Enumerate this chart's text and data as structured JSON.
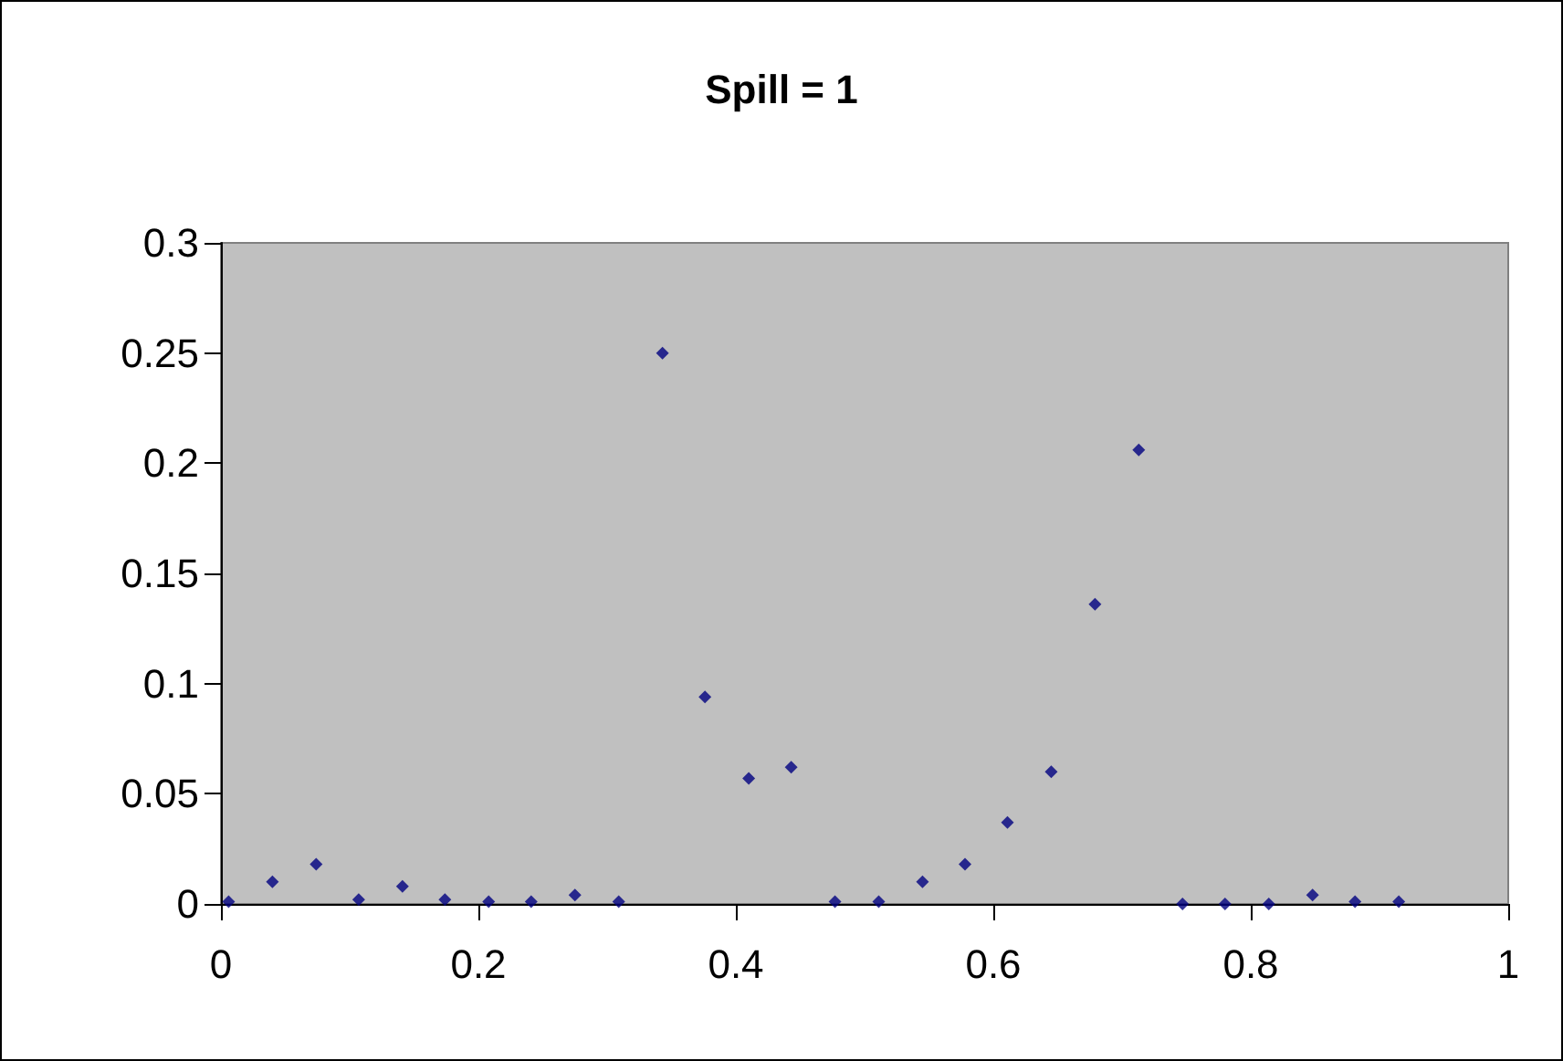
{
  "chart_data": {
    "type": "scatter",
    "title": "Spill = 1",
    "x": [
      0.006,
      0.04,
      0.074,
      0.107,
      0.141,
      0.174,
      0.208,
      0.241,
      0.275,
      0.309,
      0.343,
      0.376,
      0.41,
      0.443,
      0.477,
      0.511,
      0.545,
      0.578,
      0.611,
      0.645,
      0.679,
      0.713,
      0.747,
      0.78,
      0.814,
      0.848,
      0.881,
      0.915
    ],
    "series": [
      {
        "color": "#000080",
        "values": [
          0.001,
          0.01,
          0.018,
          0.002,
          0.008,
          0.002,
          0.001,
          0.001,
          0.004,
          0.001,
          0.25,
          0.094,
          0.057,
          0.062,
          0.001,
          0.001,
          0.01,
          0.018,
          0.037,
          0.06,
          0.136,
          0.206,
          0,
          0,
          0,
          0.004,
          0.001,
          0.001
        ]
      }
    ],
    "xlim": [
      0,
      1
    ],
    "xticks": [
      0,
      0.2,
      0.4,
      0.6,
      0.8,
      1
    ],
    "ylim": [
      0,
      0.3
    ],
    "yticks": [
      0,
      0.05,
      0.1,
      0.15,
      0.2,
      0.25,
      0.3
    ],
    "marker": "diamond"
  }
}
